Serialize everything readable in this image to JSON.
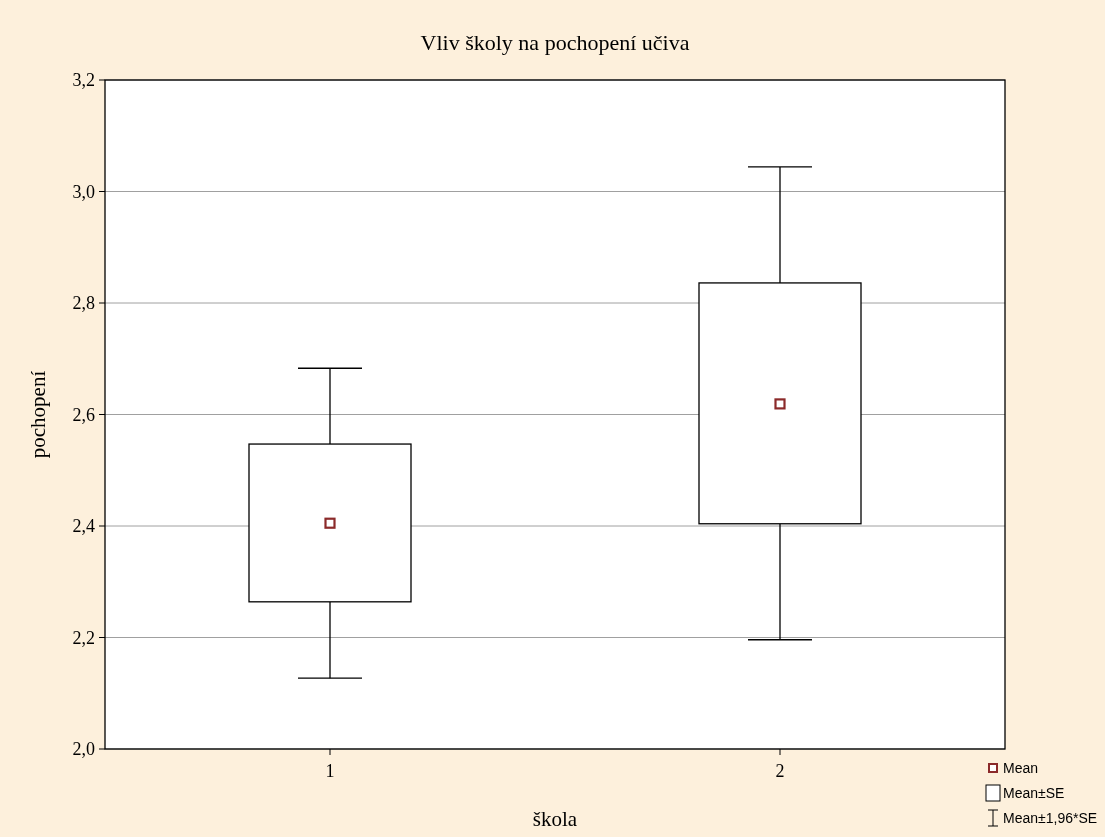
{
  "chart_data": {
    "type": "box",
    "title": "Vliv školy na pochopení učiva",
    "xlabel": "škola",
    "ylabel": "pochopení",
    "categories": [
      "1",
      "2"
    ],
    "boxes": [
      {
        "low": 2.127,
        "q1": 2.264,
        "median": 2.405,
        "q3": 2.547,
        "high": 2.683
      },
      {
        "low": 2.196,
        "q1": 2.404,
        "median": 2.619,
        "q3": 2.836,
        "high": 3.044
      }
    ],
    "ylim": [
      2.0,
      3.2
    ],
    "yticks": [
      {
        "value": 2.0,
        "label": "2,0"
      },
      {
        "value": 2.2,
        "label": "2,2"
      },
      {
        "value": 2.4,
        "label": "2,4"
      },
      {
        "value": 2.6,
        "label": "2,6"
      },
      {
        "value": 2.8,
        "label": "2,8"
      },
      {
        "value": 3.0,
        "label": "3,0"
      },
      {
        "value": 3.2,
        "label": "3,2"
      }
    ],
    "grid": "y",
    "annotations": [
      "Mean",
      "Mean±SE",
      "Mean±1,96*SE"
    ]
  }
}
